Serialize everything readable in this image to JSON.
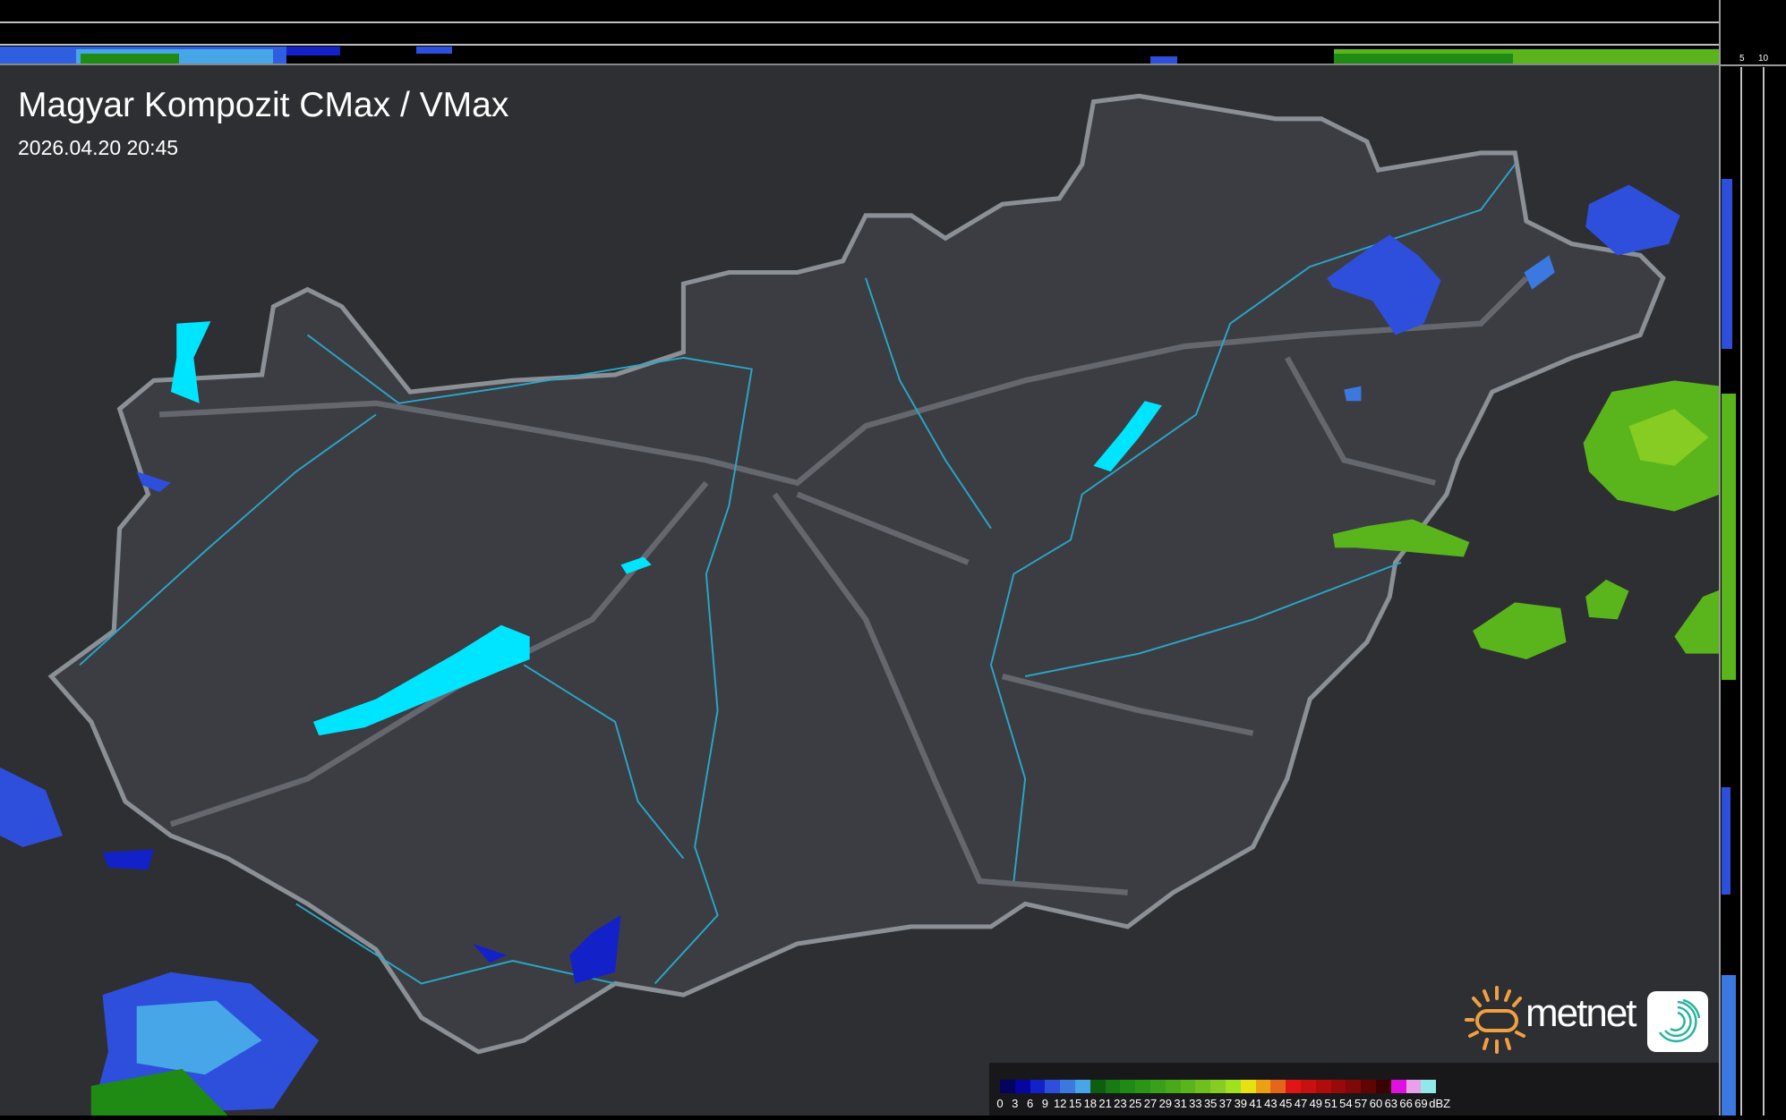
{
  "header": {
    "title": "Magyar Kompozit CMax / VMax",
    "timestamp": "2026.04.20 20:45"
  },
  "profile_axes": {
    "top_labels": [
      "10",
      "5"
    ],
    "right_labels": [
      "5",
      "10"
    ]
  },
  "legend": {
    "unit": "dBZ",
    "labels": [
      "0",
      "3",
      "6",
      "9",
      "12",
      "15",
      "18",
      "21",
      "23",
      "25",
      "27",
      "29",
      "31",
      "33",
      "35",
      "37",
      "39",
      "41",
      "43",
      "45",
      "47",
      "49",
      "51",
      "54",
      "57",
      "60",
      "63",
      "66",
      "69"
    ],
    "colors": [
      "#04035e",
      "#0505a0",
      "#1322c8",
      "#2d4fdc",
      "#3b78e0",
      "#46a6e8",
      "#0f5e10",
      "#177a12",
      "#1f8a14",
      "#2b9616",
      "#3aa019",
      "#4aa81b",
      "#5ab51c",
      "#6ec01e",
      "#86cc22",
      "#9ee21f",
      "#e8e012",
      "#eca012",
      "#e4661a",
      "#e01616",
      "#c81010",
      "#b00c0c",
      "#980a0a",
      "#800808",
      "#600404",
      "#3a0202",
      "#e010e0",
      "#e8a0e8",
      "#90e8e8"
    ]
  },
  "colors": {
    "map_bg": "#2e2f33",
    "country": "#3b3c42",
    "border": "#8a9096",
    "rivers": "#29a7c8",
    "lakes": "#00e5ff"
  },
  "logo": {
    "brand": "metnet",
    "sun_color": "#f0a040"
  }
}
